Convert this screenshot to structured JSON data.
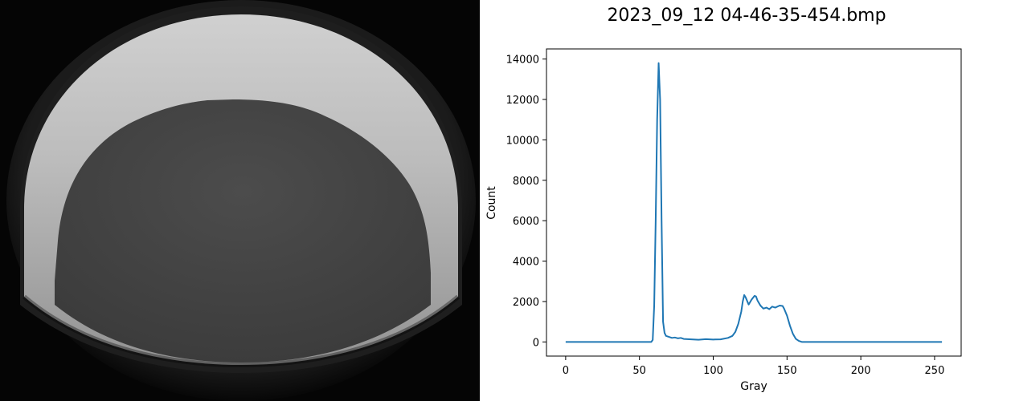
{
  "chart_data": {
    "type": "line",
    "title": "2023_09_12 04-46-35-454.bmp",
    "xlabel": "Gray",
    "ylabel": "Count",
    "xlim": [
      -13,
      268
    ],
    "ylim": [
      -700,
      14500
    ],
    "xticks": [
      0,
      50,
      100,
      150,
      200,
      250
    ],
    "yticks": [
      0,
      2000,
      4000,
      6000,
      8000,
      10000,
      12000,
      14000
    ],
    "grid": false,
    "series": [
      {
        "color": "#1f77b4",
        "x": [
          0,
          10,
          20,
          30,
          40,
          50,
          55,
          58,
          59,
          60,
          61,
          62,
          63,
          64,
          65,
          66,
          67,
          68,
          70,
          72,
          74,
          76,
          78,
          80,
          85,
          90,
          95,
          100,
          105,
          110,
          113,
          115,
          117,
          119,
          120,
          121,
          122,
          124,
          126,
          128,
          129,
          130,
          132,
          134,
          136,
          138,
          140,
          142,
          145,
          147,
          148,
          150,
          152,
          154,
          156,
          158,
          160,
          165,
          170,
          180,
          200,
          220,
          240,
          255
        ],
        "y": [
          0,
          0,
          0,
          0,
          0,
          0,
          0,
          0,
          100,
          1800,
          6000,
          11000,
          13800,
          12000,
          6000,
          1000,
          450,
          300,
          250,
          200,
          220,
          180,
          200,
          150,
          130,
          110,
          140,
          120,
          130,
          200,
          300,
          500,
          900,
          1500,
          2000,
          2320,
          2200,
          1850,
          2100,
          2280,
          2250,
          2050,
          1800,
          1650,
          1700,
          1620,
          1750,
          1700,
          1800,
          1780,
          1650,
          1300,
          800,
          400,
          150,
          50,
          0,
          0,
          0,
          0,
          0,
          0,
          0,
          0
        ]
      }
    ]
  }
}
